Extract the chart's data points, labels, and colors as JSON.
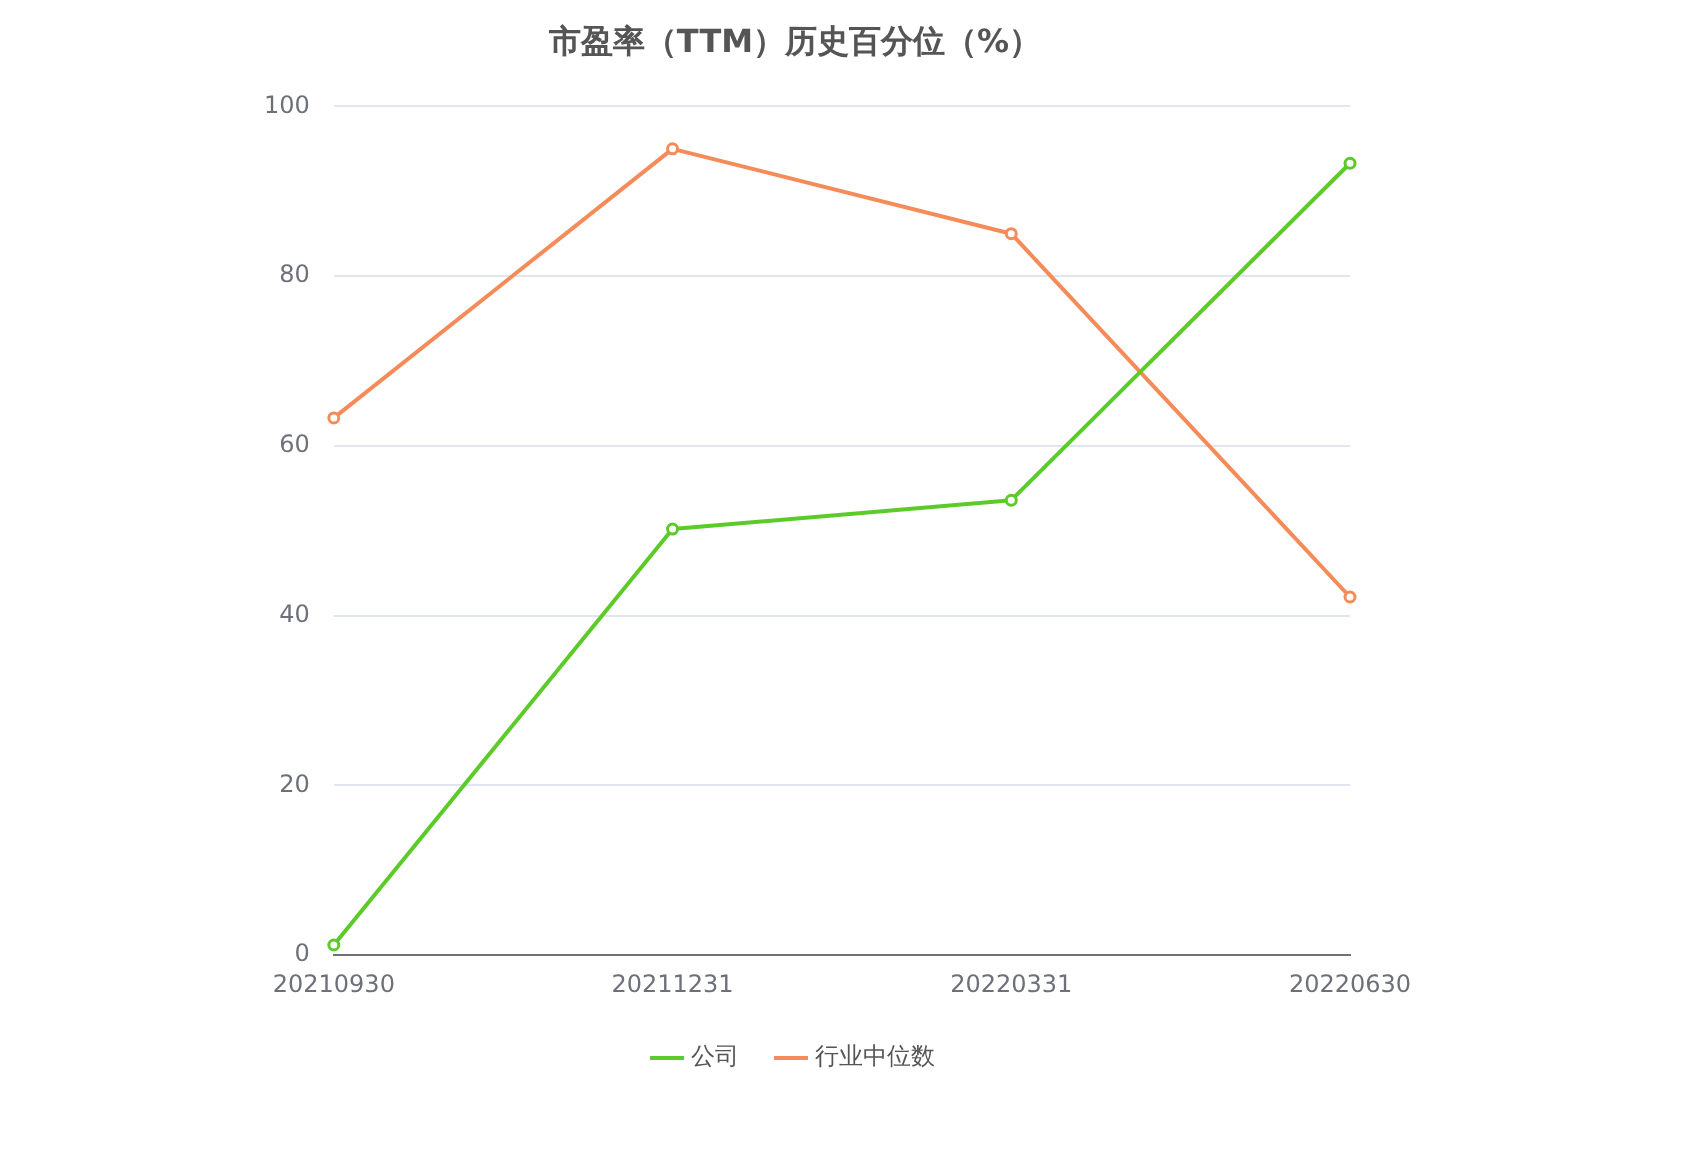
{
  "chart_data": {
    "type": "line",
    "title": "市盈率（TTM）历史百分位（%）",
    "categories": [
      "20210930",
      "20211231",
      "20220331",
      "20220630"
    ],
    "series": [
      {
        "name": "公司",
        "color": "#5ccb2a",
        "values": [
          1.2,
          50.2,
          53.6,
          93.3
        ]
      },
      {
        "name": "行业中位数",
        "color": "#f68b5a",
        "values": [
          63.3,
          95,
          85,
          42.2
        ]
      }
    ],
    "ylim": [
      0,
      100
    ],
    "yticks": [
      0,
      20,
      40,
      60,
      80,
      100
    ],
    "grid": "y",
    "legend": "bottom",
    "marker": "circle",
    "line_style": "solid"
  }
}
